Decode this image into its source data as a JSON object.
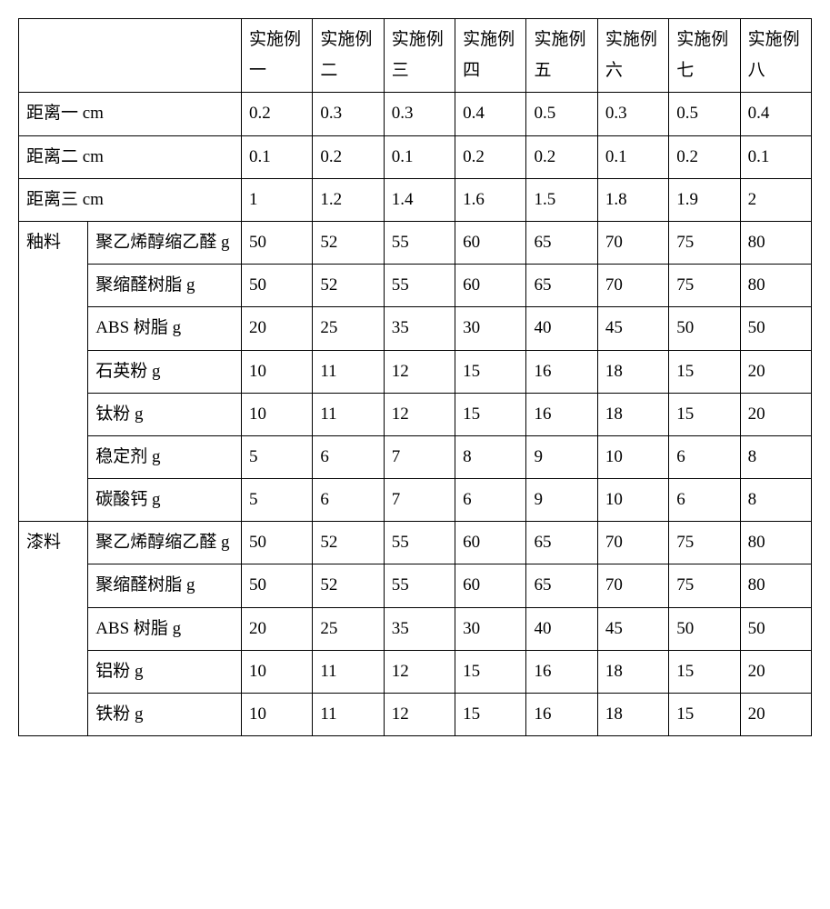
{
  "table": {
    "background_color": "#ffffff",
    "border_color": "#000000",
    "text_color": "#000000",
    "font_size_pt": 14,
    "header": [
      "实施例一",
      "实施例二",
      "实施例三",
      "实施例四",
      "实施例五",
      "实施例六",
      "实施例七",
      "实施例八"
    ],
    "simple_rows": [
      {
        "label": "距离一  cm",
        "vals": [
          "0.2",
          "0.3",
          "0.3",
          "0.4",
          "0.5",
          "0.3",
          "0.5",
          "0.4"
        ]
      },
      {
        "label": "距离二  cm",
        "vals": [
          "0.1",
          "0.2",
          "0.1",
          "0.2",
          "0.2",
          "0.1",
          "0.2",
          "0.1"
        ]
      },
      {
        "label": "距离三   cm",
        "vals": [
          "1",
          "1.2",
          "1.4",
          "1.6",
          "1.5",
          "1.8",
          "1.9",
          "2"
        ]
      }
    ],
    "groups": [
      {
        "name": "釉料",
        "rows": [
          {
            "label": "聚乙烯醇缩乙醛  g",
            "vals": [
              "50",
              "52",
              "55",
              "60",
              "65",
              "70",
              "75",
              "80"
            ]
          },
          {
            "label": "聚缩醛树脂  g",
            "vals": [
              "50",
              "52",
              "55",
              "60",
              "65",
              "70",
              "75",
              "80"
            ]
          },
          {
            "label": "ABS 树脂  g",
            "vals": [
              "20",
              "25",
              "35",
              "30",
              "40",
              "45",
              "50",
              "50"
            ]
          },
          {
            "label": "石英粉  g",
            "vals": [
              "10",
              "11",
              "12",
              "15",
              "16",
              "18",
              "15",
              "20"
            ]
          },
          {
            "label": "钛粉  g",
            "vals": [
              "10",
              "11",
              "12",
              "15",
              "16",
              "18",
              "15",
              "20"
            ]
          },
          {
            "label": "稳定剂  g",
            "vals": [
              "5",
              "6",
              "7",
              "8",
              "9",
              "10",
              "6",
              "8"
            ]
          },
          {
            "label": "碳酸钙  g",
            "vals": [
              "5",
              "6",
              "7",
              "6",
              "9",
              "10",
              "6",
              "8"
            ]
          }
        ]
      },
      {
        "name": "漆料",
        "rows": [
          {
            "label": "聚乙烯醇缩乙醛  g",
            "vals": [
              "50",
              "52",
              "55",
              "60",
              "65",
              "70",
              "75",
              "80"
            ]
          },
          {
            "label": "聚缩醛树脂  g",
            "vals": [
              "50",
              "52",
              "55",
              "60",
              "65",
              "70",
              "75",
              "80"
            ]
          },
          {
            "label": "ABS 树脂  g",
            "vals": [
              "20",
              "25",
              "35",
              "30",
              "40",
              "45",
              "50",
              "50"
            ]
          },
          {
            "label": "铝粉  g",
            "vals": [
              "10",
              "11",
              "12",
              "15",
              "16",
              "18",
              "15",
              "20"
            ]
          },
          {
            "label": "铁粉  g",
            "vals": [
              "10",
              "11",
              "12",
              "15",
              "16",
              "18",
              "15",
              "20"
            ]
          }
        ]
      }
    ]
  }
}
